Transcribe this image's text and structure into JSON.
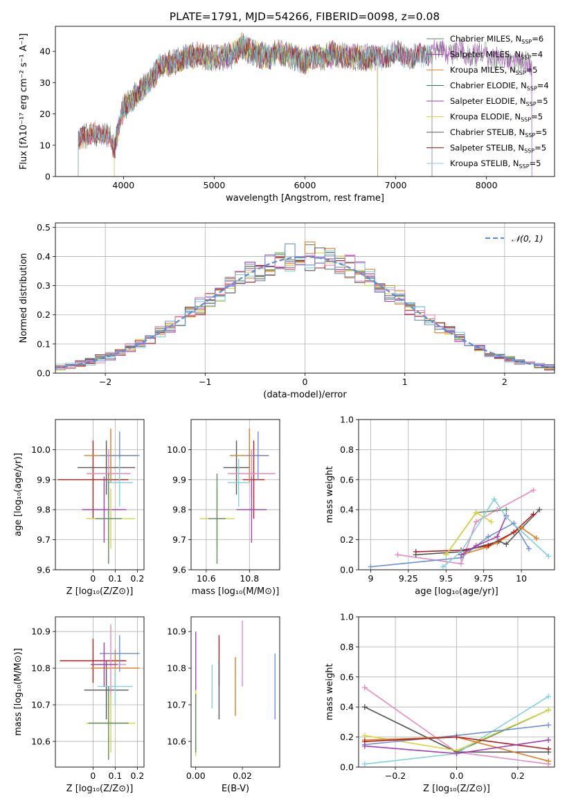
{
  "colors": [
    "#5e8a5e",
    "#a63ab8",
    "#e07b1f",
    "#2f6e5e",
    "#a63ab8",
    "#d6d63a",
    "#555555",
    "#b31b1b",
    "#7fd1dc"
  ],
  "chart_data": [
    {
      "id": "spectrum",
      "type": "line",
      "title": "PLATE=1791, MJD=54266, FIBERID=0098, z=0.08",
      "xlabel": "wavelength [Angstrom, rest frame]",
      "ylabel": "Flux [fλ10⁻¹⁷ erg cm⁻² s⁻¹ A⁻¹]",
      "xlim": [
        3250,
        8750
      ],
      "ylim": [
        0,
        48
      ],
      "xticks": [
        4000,
        5000,
        6000,
        7000,
        8000
      ],
      "yticks": [
        0,
        10,
        20,
        30,
        40
      ],
      "legend_position": "upper right",
      "series": [
        {
          "name": "Chabrier MILES, N_SSP=6",
          "color": "#5e8a5e",
          "x_range": [
            3500,
            8500
          ]
        },
        {
          "name": "Salpeter MILES, N_SSP=4",
          "color": "#a63ab8",
          "x_range": [
            3500,
            8500
          ]
        },
        {
          "name": "Kroupa MILES, N_SSP=5",
          "color": "#e07b1f",
          "x_range": [
            3500,
            6800
          ]
        },
        {
          "name": "Chabrier ELODIE, N_SSP=4",
          "color": "#2f6e5e",
          "x_range": [
            3900,
            6800
          ]
        },
        {
          "name": "Salpeter ELODIE, N_SSP=5",
          "color": "#a63ab8",
          "x_range": [
            3900,
            6800
          ]
        },
        {
          "name": "Kroupa ELODIE, N_SSP=5",
          "color": "#d6d63a",
          "x_range": [
            3900,
            6800
          ]
        },
        {
          "name": "Chabrier STELIB, N_SSP=5",
          "color": "#555555",
          "x_range": [
            3500,
            7400
          ]
        },
        {
          "name": "Salpeter STELIB, N_SSP=5",
          "color": "#b31b1b",
          "x_range": [
            3500,
            7400
          ]
        },
        {
          "name": "Kroupa STELIB, N_SSP=5",
          "color": "#7fd1dc",
          "x_range": [
            3500,
            7400
          ]
        }
      ],
      "continuum": {
        "x": [
          3500,
          3650,
          3750,
          3850,
          3900,
          3950,
          4000,
          4100,
          4200,
          4300,
          4400,
          4500,
          4600,
          4700,
          4800,
          4900,
          5000,
          5100,
          5200,
          5300,
          5400,
          5500,
          5600,
          5700,
          5800,
          5900,
          6000,
          6100,
          6200,
          6300,
          6400,
          6500,
          6600,
          6700,
          6800,
          6900,
          7000,
          7100,
          7200,
          7300,
          7400,
          7500,
          7600,
          7700,
          7800,
          7900,
          8000,
          8100,
          8200,
          8300,
          8400,
          8500
        ],
        "y": [
          11,
          15,
          12,
          14,
          9,
          16,
          22,
          25,
          28,
          31,
          35,
          36,
          37,
          38,
          39,
          38,
          38,
          38,
          39,
          42,
          40,
          39,
          38,
          40,
          39,
          38,
          37,
          38,
          38,
          39,
          39,
          38,
          38,
          38,
          38,
          39,
          39,
          39,
          38,
          39,
          40,
          40,
          40,
          40,
          39,
          39,
          39,
          38,
          37,
          37,
          36,
          35
        ]
      }
    },
    {
      "id": "residuals",
      "type": "line",
      "xlabel": "(data-model)/error",
      "ylabel": "Normed distribution",
      "xlim": [
        -2.5,
        2.5
      ],
      "ylim": [
        0,
        0.515
      ],
      "xticks": [
        -2,
        -1,
        0,
        1,
        2
      ],
      "xtick_labels": [
        "−2",
        "−1",
        "0",
        "1",
        "2"
      ],
      "yticks": [
        0.0,
        0.1,
        0.2,
        0.3,
        0.4,
        0.5
      ],
      "grid": true,
      "legend_position": "upper right",
      "reference_curve": {
        "name": "𝒩(0, 1)",
        "color": "#5b8ed6",
        "mean": 0,
        "sigma": 1
      },
      "histogram_bin_width": 0.1,
      "histogram_colors": [
        "#5e8a5e",
        "#a63ab8",
        "#e07b1f",
        "#d6d63a",
        "#555555",
        "#b31b1b",
        "#7fd1dc",
        "#e889c0",
        "#6b8fd9"
      ]
    },
    {
      "id": "age_vs_Z",
      "type": "scatter",
      "xlabel": "Z [log₁₀(Z/Z⊙)]",
      "ylabel": "age  [log₁₀(age/yr)]",
      "xlim": [
        -0.17,
        0.23
      ],
      "ylim": [
        9.6,
        10.1
      ],
      "xticks": [
        0.0,
        0.1,
        0.2
      ],
      "yticks": [
        9.6,
        9.7,
        9.8,
        9.9,
        10.0
      ],
      "grid": true,
      "points": [
        {
          "x": 0.0,
          "y": 9.9,
          "xerr": 0.16,
          "yerr": 0.13,
          "color": "#b31b1b"
        },
        {
          "x": 0.06,
          "y": 9.94,
          "xerr": 0.13,
          "yerr": 0.09,
          "color": "#555555"
        },
        {
          "x": 0.08,
          "y": 9.98,
          "xerr": 0.12,
          "yerr": 0.09,
          "color": "#e07b1f"
        },
        {
          "x": 0.12,
          "y": 9.98,
          "xerr": 0.09,
          "yerr": 0.08,
          "color": "#6b8fd9"
        },
        {
          "x": 0.07,
          "y": 9.92,
          "xerr": 0.1,
          "yerr": 0.08,
          "color": "#e889c0"
        },
        {
          "x": 0.12,
          "y": 9.89,
          "xerr": 0.06,
          "yerr": 0.08,
          "color": "#7fd1dc"
        },
        {
          "x": 0.05,
          "y": 9.8,
          "xerr": 0.1,
          "yerr": 0.11,
          "color": "#a63ab8"
        },
        {
          "x": 0.08,
          "y": 9.77,
          "xerr": 0.11,
          "yerr": 0.1,
          "color": "#d6d63a"
        },
        {
          "x": 0.07,
          "y": 9.77,
          "xerr": 0.06,
          "yerr": 0.15,
          "color": "#5e8a5e"
        }
      ]
    },
    {
      "id": "age_vs_mass",
      "type": "scatter",
      "xlabel": "mass [log₁₀(M/M⊙)]",
      "ylim": [
        9.6,
        10.1
      ],
      "xlim": [
        10.53,
        10.94
      ],
      "xticks": [
        10.6,
        10.8
      ],
      "yticks": [
        9.6,
        9.7,
        9.8,
        9.9,
        10.0
      ],
      "grid": true,
      "points": [
        {
          "x": 10.82,
          "y": 9.9,
          "xerr": 0.05,
          "yerr": 0.13,
          "color": "#b31b1b"
        },
        {
          "x": 10.74,
          "y": 9.94,
          "xerr": 0.06,
          "yerr": 0.09,
          "color": "#555555"
        },
        {
          "x": 10.8,
          "y": 9.98,
          "xerr": 0.09,
          "yerr": 0.09,
          "color": "#e07b1f"
        },
        {
          "x": 10.84,
          "y": 9.98,
          "xerr": 0.05,
          "yerr": 0.08,
          "color": "#6b8fd9"
        },
        {
          "x": 10.81,
          "y": 9.92,
          "xerr": 0.11,
          "yerr": 0.08,
          "color": "#e889c0"
        },
        {
          "x": 10.75,
          "y": 9.89,
          "xerr": 0.05,
          "yerr": 0.08,
          "color": "#7fd1dc"
        },
        {
          "x": 10.81,
          "y": 9.8,
          "xerr": 0.07,
          "yerr": 0.11,
          "color": "#a63ab8"
        },
        {
          "x": 10.65,
          "y": 9.77,
          "xerr": 0.08,
          "yerr": 0.1,
          "color": "#d6d63a"
        },
        {
          "x": 10.65,
          "y": 9.77,
          "xerr": 0.04,
          "yerr": 0.15,
          "color": "#5e8a5e"
        }
      ]
    },
    {
      "id": "mass_weight_vs_age",
      "type": "line",
      "xlabel": "age  [log₁₀(age/yr)]",
      "ylabel": "mass weight",
      "xlim": [
        8.92,
        10.22
      ],
      "ylim": [
        0,
        1.0
      ],
      "xticks": [
        9.0,
        9.25,
        9.5,
        9.75,
        10.0
      ],
      "yticks": [
        0.0,
        0.2,
        0.4,
        0.6,
        0.8,
        1.0
      ],
      "grid": true,
      "series": [
        {
          "color": "#e889c0",
          "x": [
            9.18,
            9.6,
            9.7,
            9.84,
            10.08
          ],
          "y": [
            0.1,
            0.04,
            0.32,
            0.4,
            0.53
          ]
        },
        {
          "color": "#6b8fd9",
          "x": [
            9.0,
            9.6,
            9.78,
            9.95,
            10.05
          ],
          "y": [
            0.02,
            0.08,
            0.22,
            0.31,
            0.14
          ]
        },
        {
          "color": "#e07b1f",
          "x": [
            9.6,
            9.77,
            9.84,
            10.0,
            10.1
          ],
          "y": [
            0.1,
            0.15,
            0.18,
            0.28,
            0.21
          ]
        },
        {
          "color": "#b31b1b",
          "x": [
            9.3,
            9.6,
            9.78,
            9.95,
            10.08
          ],
          "y": [
            0.12,
            0.13,
            0.16,
            0.25,
            0.37
          ]
        },
        {
          "color": "#555555",
          "x": [
            9.3,
            9.6,
            9.85,
            9.9,
            10.12
          ],
          "y": [
            0.1,
            0.12,
            0.19,
            0.17,
            0.4
          ]
        },
        {
          "color": "#a63ab8",
          "x": [
            9.6,
            9.7,
            9.84,
            9.9
          ],
          "y": [
            0.1,
            0.16,
            0.22,
            0.36
          ]
        },
        {
          "color": "#5e8a5e",
          "x": [
            9.5,
            9.7,
            9.9
          ],
          "y": [
            0.1,
            0.38,
            0.4
          ]
        },
        {
          "color": "#d6d63a",
          "x": [
            9.5,
            9.7,
            9.8
          ],
          "y": [
            0.1,
            0.38,
            0.32
          ]
        },
        {
          "color": "#7fd1dc",
          "x": [
            9.48,
            9.6,
            9.82,
            9.9,
            10.18
          ],
          "y": [
            0.02,
            0.12,
            0.47,
            0.35,
            0.09
          ]
        }
      ]
    },
    {
      "id": "mass_vs_Z",
      "type": "scatter",
      "xlabel": "Z [log₁₀(Z/Z⊙)]",
      "ylabel": "mass [log₁₀(M/M⊙)]",
      "xlim": [
        -0.17,
        0.23
      ],
      "ylim": [
        10.53,
        10.94
      ],
      "xticks": [
        0.0,
        0.1,
        0.2
      ],
      "yticks": [
        10.6,
        10.7,
        10.8,
        10.9
      ],
      "grid": true,
      "points": [
        {
          "x": 0.0,
          "y": 10.82,
          "xerr": 0.15,
          "yerr": 0.06,
          "color": "#b31b1b"
        },
        {
          "x": 0.06,
          "y": 10.74,
          "xerr": 0.1,
          "yerr": 0.08,
          "color": "#555555"
        },
        {
          "x": 0.1,
          "y": 10.8,
          "xerr": 0.11,
          "yerr": 0.05,
          "color": "#e07b1f"
        },
        {
          "x": 0.12,
          "y": 10.84,
          "xerr": 0.09,
          "yerr": 0.05,
          "color": "#6b8fd9"
        },
        {
          "x": 0.08,
          "y": 10.81,
          "xerr": 0.07,
          "yerr": 0.11,
          "color": "#e889c0"
        },
        {
          "x": 0.1,
          "y": 10.75,
          "xerr": 0.08,
          "yerr": 0.05,
          "color": "#7fd1dc"
        },
        {
          "x": 0.05,
          "y": 10.81,
          "xerr": 0.06,
          "yerr": 0.06,
          "color": "#a63ab8"
        },
        {
          "x": 0.08,
          "y": 10.65,
          "xerr": 0.11,
          "yerr": 0.08,
          "color": "#d6d63a"
        },
        {
          "x": 0.07,
          "y": 10.65,
          "xerr": 0.09,
          "yerr": 0.1,
          "color": "#5e8a5e"
        }
      ]
    },
    {
      "id": "mass_vs_EBV",
      "type": "scatter",
      "xlabel": "E(B-V)",
      "xlim": [
        -0.002,
        0.036
      ],
      "ylim": [
        10.53,
        10.94
      ],
      "xticks": [
        0.0,
        0.02
      ],
      "xtick_labels": [
        "0.00",
        "0.02"
      ],
      "yticks": [
        10.6,
        10.7,
        10.8,
        10.9
      ],
      "grid": false,
      "points": [
        {
          "x": 0.0,
          "y": 10.82,
          "yerr": 0.08,
          "color": "#a63ab8"
        },
        {
          "x": 0.0,
          "y": 10.65,
          "yerr": 0.09,
          "color": "#d6d63a"
        },
        {
          "x": 0.0,
          "y": 10.65,
          "yerr": 0.08,
          "color": "#5e8a5e"
        },
        {
          "x": 0.007,
          "y": 10.75,
          "yerr": 0.06,
          "color": "#7fd1dc"
        },
        {
          "x": 0.01,
          "y": 10.82,
          "yerr": 0.07,
          "color": "#b31b1b"
        },
        {
          "x": 0.01,
          "y": 10.74,
          "yerr": 0.08,
          "color": "#555555"
        },
        {
          "x": 0.017,
          "y": 10.75,
          "yerr": 0.08,
          "color": "#e07b1f"
        },
        {
          "x": 0.02,
          "y": 10.84,
          "yerr": 0.09,
          "color": "#e889c0"
        },
        {
          "x": 0.034,
          "y": 10.75,
          "yerr": 0.09,
          "color": "#6b8fd9"
        }
      ]
    },
    {
      "id": "mass_weight_vs_Z",
      "type": "line",
      "xlabel": "Z [log₁₀(Z/Z⊙)]",
      "ylabel": "mass weight",
      "xlim": [
        -0.32,
        0.32
      ],
      "ylim": [
        0,
        1.0
      ],
      "xticks": [
        -0.2,
        0.0,
        0.2
      ],
      "xtick_labels": [
        "−0.2",
        "0.0",
        "0.2"
      ],
      "yticks": [
        0.0,
        0.2,
        0.4,
        0.6,
        0.8,
        1.0
      ],
      "grid": true,
      "series": [
        {
          "color": "#e889c0",
          "x": [
            -0.3,
            0.0,
            0.3
          ],
          "y": [
            0.53,
            0.1,
            0.02
          ]
        },
        {
          "color": "#5e8a5e",
          "x": [
            -0.3,
            0.0,
            0.3
          ],
          "y": [
            0.4,
            0.1,
            0.38
          ]
        },
        {
          "color": "#555555",
          "x": [
            -0.3,
            0.0,
            0.3
          ],
          "y": [
            0.4,
            0.1,
            0.1
          ]
        },
        {
          "color": "#7fd1dc",
          "x": [
            -0.3,
            0.0,
            0.3
          ],
          "y": [
            0.02,
            0.09,
            0.47
          ]
        },
        {
          "color": "#d6d63a",
          "x": [
            -0.3,
            0.0,
            0.3
          ],
          "y": [
            0.21,
            0.11,
            0.38
          ]
        },
        {
          "color": "#6b8fd9",
          "x": [
            -0.3,
            0.0,
            0.3
          ],
          "y": [
            0.15,
            0.21,
            0.28
          ]
        },
        {
          "color": "#e07b1f",
          "x": [
            -0.3,
            0.0,
            0.3
          ],
          "y": [
            0.18,
            0.2,
            0.04
          ]
        },
        {
          "color": "#b31b1b",
          "x": [
            -0.3,
            0.0,
            0.3
          ],
          "y": [
            0.17,
            0.2,
            0.12
          ]
        },
        {
          "color": "#a63ab8",
          "x": [
            -0.3,
            0.0,
            0.3
          ],
          "y": [
            0.14,
            0.09,
            0.18
          ]
        }
      ]
    }
  ]
}
